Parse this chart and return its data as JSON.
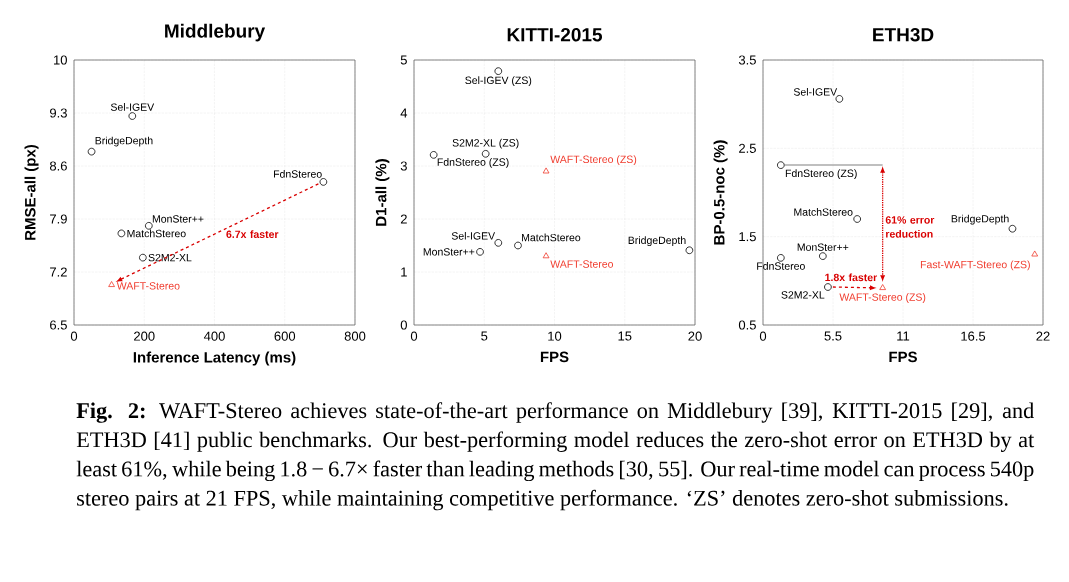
{
  "chart_data": [
    {
      "type": "scatter",
      "title": "Middlebury",
      "xlabel": "Inference Latency (ms)",
      "ylabel": "RMSE-all (px)",
      "xlim": [
        0,
        800
      ],
      "ylim": [
        6.5,
        10
      ],
      "xticks": [
        0,
        200,
        400,
        600,
        800
      ],
      "yticks": [
        6.5,
        7.2,
        7.9,
        8.6,
        9.3,
        10
      ],
      "grid": true,
      "series": [
        {
          "name": "Sel-IGEV",
          "color": "#000000",
          "marker": "circle",
          "x": [
            166
          ],
          "values": [
            9.26
          ]
        },
        {
          "name": "BridgeDepth",
          "color": "#000000",
          "marker": "circle",
          "x": [
            50
          ],
          "values": [
            8.79
          ]
        },
        {
          "name": "FdnStereo",
          "color": "#000000",
          "marker": "circle",
          "x": [
            710
          ],
          "values": [
            8.39
          ]
        },
        {
          "name": "MonSter++",
          "color": "#000000",
          "marker": "circle",
          "x": [
            213
          ],
          "values": [
            7.81
          ]
        },
        {
          "name": "MatchStereo",
          "color": "#000000",
          "marker": "circle",
          "x": [
            135
          ],
          "values": [
            7.71
          ]
        },
        {
          "name": "S2M2-XL",
          "color": "#000000",
          "marker": "circle",
          "x": [
            196
          ],
          "values": [
            7.39
          ]
        },
        {
          "name": "WAFT-Stereo",
          "color": "#f03c2e",
          "marker": "triangle",
          "x": [
            107
          ],
          "values": [
            7.03
          ]
        }
      ],
      "annotations": [
        "6.7x faster"
      ]
    },
    {
      "type": "scatter",
      "title": "KITTI-2015",
      "xlabel": "FPS",
      "ylabel": "D1-all (%)",
      "xlim": [
        0,
        20
      ],
      "ylim": [
        0,
        5
      ],
      "xticks": [
        0,
        5,
        10,
        15,
        20
      ],
      "yticks": [
        0,
        1,
        2,
        3,
        4,
        5
      ],
      "grid": true,
      "series": [
        {
          "name": "Sel-IGEV (ZS)",
          "color": "#000000",
          "marker": "circle",
          "x": [
            6.0
          ],
          "values": [
            4.79
          ]
        },
        {
          "name": "S2M2-XL (ZS)",
          "color": "#000000",
          "marker": "circle",
          "x": [
            5.1
          ],
          "values": [
            3.23
          ]
        },
        {
          "name": "FdnStereo (ZS)",
          "color": "#000000",
          "marker": "circle",
          "x": [
            1.4
          ],
          "values": [
            3.21
          ]
        },
        {
          "name": "Sel-IGEV",
          "color": "#000000",
          "marker": "circle",
          "x": [
            6.0
          ],
          "values": [
            1.55
          ]
        },
        {
          "name": "MatchStereo",
          "color": "#000000",
          "marker": "circle",
          "x": [
            7.4
          ],
          "values": [
            1.5
          ]
        },
        {
          "name": "MonSter++",
          "color": "#000000",
          "marker": "circle",
          "x": [
            4.7
          ],
          "values": [
            1.38
          ]
        },
        {
          "name": "BridgeDepth",
          "color": "#000000",
          "marker": "circle",
          "x": [
            19.6
          ],
          "values": [
            1.41
          ]
        },
        {
          "name": "WAFT-Stereo (ZS)",
          "color": "#f03c2e",
          "marker": "triangle",
          "x": [
            9.4
          ],
          "values": [
            2.9
          ]
        },
        {
          "name": "WAFT-Stereo",
          "color": "#f03c2e",
          "marker": "triangle",
          "x": [
            9.4
          ],
          "values": [
            1.3
          ]
        }
      ]
    },
    {
      "type": "scatter",
      "title": "ETH3D",
      "xlabel": "FPS",
      "ylabel": "BP-0.5-noc (%)",
      "xlim": [
        0,
        22
      ],
      "ylim": [
        0.5,
        3.5
      ],
      "xticks": [
        0,
        5.5,
        11,
        16.5,
        22
      ],
      "yticks": [
        0.5,
        1.5,
        2.5,
        3.5
      ],
      "grid": true,
      "series": [
        {
          "name": "Sel-IGEV",
          "color": "#000000",
          "marker": "circle",
          "x": [
            6.0
          ],
          "values": [
            3.06
          ]
        },
        {
          "name": "FdnStereo (ZS)",
          "color": "#000000",
          "marker": "circle",
          "x": [
            1.4
          ],
          "values": [
            2.31
          ]
        },
        {
          "name": "MatchStereo",
          "color": "#000000",
          "marker": "circle",
          "x": [
            7.4
          ],
          "values": [
            1.7
          ]
        },
        {
          "name": "BridgeDepth",
          "color": "#000000",
          "marker": "circle",
          "x": [
            19.6
          ],
          "values": [
            1.59
          ]
        },
        {
          "name": "MonSter++",
          "color": "#000000",
          "marker": "circle",
          "x": [
            4.7
          ],
          "values": [
            1.28
          ]
        },
        {
          "name": "FdnStereo",
          "color": "#000000",
          "marker": "circle",
          "x": [
            1.4
          ],
          "values": [
            1.26
          ]
        },
        {
          "name": "S2M2-XL",
          "color": "#000000",
          "marker": "circle",
          "x": [
            5.1
          ],
          "values": [
            0.93
          ]
        },
        {
          "name": "WAFT-Stereo (ZS)",
          "color": "#f03c2e",
          "marker": "triangle",
          "x": [
            9.4
          ],
          "values": [
            0.92
          ]
        },
        {
          "name": "Fast-WAFT-Stereo (ZS)",
          "color": "#f03c2e",
          "marker": "triangle",
          "x": [
            21.35
          ],
          "values": [
            1.3
          ]
        }
      ],
      "annotations": [
        "61% error reduction",
        "1.8x faster"
      ]
    },
    {
      "type": "other",
      "annotations": [
        "**Fig. 2:** WAFT-Stereo achieves state-of-the-art performance on Middlebury [39], KITTI-2015 [29], and ETH3D [41] public benchmarks. Our best-performing model reduces the zero-shot error on ETH3D by at least 61%, while being 1.8 − 6.7× faster than leading methods [30, 55]. Our real-time model can process 540p stereo pairs at 21 FPS, while maintaining competitive performance. ‘ZS’ denotes zero-shot submissions."
      ]
    }
  ]
}
